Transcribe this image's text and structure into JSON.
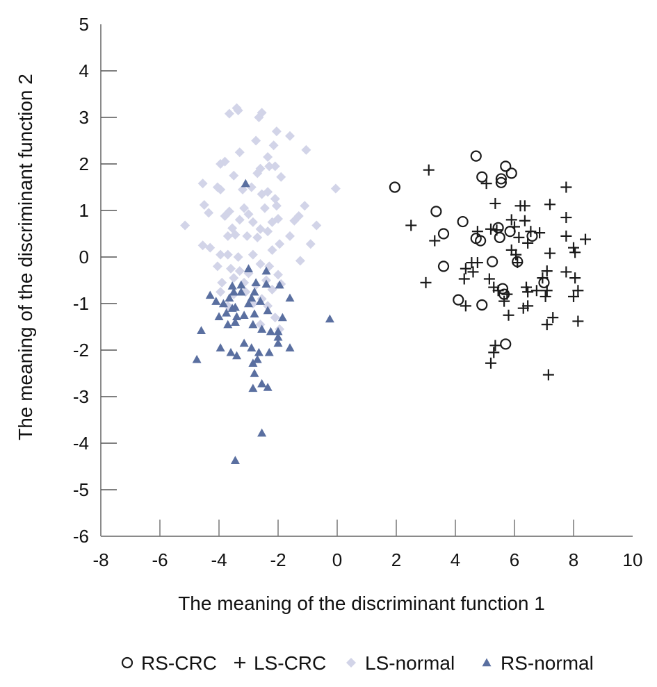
{
  "chart_data": {
    "type": "scatter",
    "title": "",
    "xlabel": "The meaning of the discriminant function 1",
    "ylabel": "The meaning of the discriminant function 2",
    "xlim": [
      -8,
      10
    ],
    "ylim": [
      -6,
      5
    ],
    "xticks": [
      -8,
      -6,
      -4,
      -2,
      0,
      2,
      4,
      6,
      8,
      10
    ],
    "yticks": [
      5,
      4,
      3,
      2,
      1,
      0,
      -1,
      -2,
      -3,
      -4,
      -5,
      -6
    ],
    "xtick_labels": [
      "-8",
      "-6",
      "-4",
      "-2",
      "0",
      "2",
      "4",
      "6",
      "8",
      "10"
    ],
    "ytick_labels": [
      "5",
      "4",
      "3",
      "2",
      "1",
      "0",
      "-1",
      "-2",
      "-3",
      "-4",
      "-5",
      "-6"
    ],
    "grid": false,
    "legend_position": "bottom",
    "series": [
      {
        "name": "RS-CRC",
        "marker": "circle-open",
        "color": "#1a1a1a",
        "points": [
          [
            4.7,
            2.17
          ],
          [
            5.7,
            1.95
          ],
          [
            4.9,
            1.72
          ],
          [
            5.9,
            1.8
          ],
          [
            5.55,
            1.68
          ],
          [
            5.55,
            1.6
          ],
          [
            1.95,
            1.5
          ],
          [
            3.35,
            0.98
          ],
          [
            4.25,
            0.76
          ],
          [
            3.6,
            0.5
          ],
          [
            4.7,
            0.4
          ],
          [
            4.85,
            0.35
          ],
          [
            5.5,
            0.42
          ],
          [
            5.85,
            0.55
          ],
          [
            6.6,
            0.45
          ],
          [
            5.45,
            0.63
          ],
          [
            5.25,
            -0.1
          ],
          [
            6.1,
            -0.1
          ],
          [
            3.6,
            -0.2
          ],
          [
            5.6,
            -0.68
          ],
          [
            5.65,
            -0.8
          ],
          [
            7.0,
            -0.55
          ],
          [
            4.1,
            -0.92
          ],
          [
            4.9,
            -1.03
          ],
          [
            5.7,
            -1.87
          ]
        ]
      },
      {
        "name": "LS-CRC",
        "marker": "plus",
        "color": "#1a1a1a",
        "points": [
          [
            3.1,
            1.87
          ],
          [
            5.05,
            1.58
          ],
          [
            7.75,
            1.5
          ],
          [
            5.35,
            1.15
          ],
          [
            6.2,
            1.1
          ],
          [
            6.35,
            1.1
          ],
          [
            7.2,
            1.13
          ],
          [
            7.75,
            0.85
          ],
          [
            5.9,
            0.8
          ],
          [
            6.35,
            0.78
          ],
          [
            2.5,
            0.68
          ],
          [
            6.0,
            0.65
          ],
          [
            6.55,
            0.55
          ],
          [
            4.75,
            0.55
          ],
          [
            5.4,
            0.58
          ],
          [
            5.2,
            0.6
          ],
          [
            6.85,
            0.52
          ],
          [
            7.75,
            0.45
          ],
          [
            8.4,
            0.38
          ],
          [
            3.3,
            0.35
          ],
          [
            6.15,
            0.42
          ],
          [
            6.45,
            0.3
          ],
          [
            5.9,
            0.15
          ],
          [
            8.0,
            0.2
          ],
          [
            8.05,
            0.1
          ],
          [
            7.2,
            0.08
          ],
          [
            6.05,
            0.05
          ],
          [
            4.55,
            -0.12
          ],
          [
            4.75,
            -0.12
          ],
          [
            6.1,
            -0.12
          ],
          [
            4.35,
            -0.25
          ],
          [
            4.6,
            -0.32
          ],
          [
            7.1,
            -0.3
          ],
          [
            7.75,
            -0.32
          ],
          [
            3.0,
            -0.55
          ],
          [
            4.3,
            -0.47
          ],
          [
            5.15,
            -0.47
          ],
          [
            6.95,
            -0.45
          ],
          [
            8.05,
            -0.45
          ],
          [
            5.3,
            -0.65
          ],
          [
            5.45,
            -0.72
          ],
          [
            6.4,
            -0.65
          ],
          [
            6.45,
            -0.75
          ],
          [
            6.75,
            -0.72
          ],
          [
            7.1,
            -0.72
          ],
          [
            8.15,
            -0.72
          ],
          [
            5.75,
            -0.8
          ],
          [
            7.05,
            -0.85
          ],
          [
            8.0,
            -0.85
          ],
          [
            5.65,
            -0.95
          ],
          [
            4.35,
            -1.05
          ],
          [
            6.3,
            -1.1
          ],
          [
            6.45,
            -1.05
          ],
          [
            5.8,
            -1.25
          ],
          [
            7.3,
            -1.3
          ],
          [
            8.15,
            -1.38
          ],
          [
            7.1,
            -1.45
          ],
          [
            5.35,
            -1.9
          ],
          [
            5.3,
            -2.05
          ],
          [
            5.2,
            -2.28
          ],
          [
            7.15,
            -2.53
          ]
        ]
      },
      {
        "name": "LS-normal",
        "marker": "diamond",
        "color": "#d2d4e8",
        "points": [
          [
            -3.4,
            3.2
          ],
          [
            -3.35,
            3.15
          ],
          [
            -3.65,
            3.08
          ],
          [
            -2.55,
            3.1
          ],
          [
            -2.65,
            3.0
          ],
          [
            -2.05,
            2.7
          ],
          [
            -1.6,
            2.6
          ],
          [
            -2.75,
            2.5
          ],
          [
            -1.05,
            2.3
          ],
          [
            -3.3,
            2.25
          ],
          [
            -2.15,
            2.4
          ],
          [
            -3.95,
            2.0
          ],
          [
            -3.8,
            2.05
          ],
          [
            -2.35,
            2.15
          ],
          [
            -2.3,
            1.95
          ],
          [
            -2.1,
            1.95
          ],
          [
            -2.6,
            1.9
          ],
          [
            -2.7,
            1.8
          ],
          [
            -1.9,
            1.72
          ],
          [
            -3.5,
            1.75
          ],
          [
            -4.05,
            1.5
          ],
          [
            -3.95,
            1.45
          ],
          [
            -3.2,
            1.45
          ],
          [
            -2.9,
            1.5
          ],
          [
            -2.55,
            1.35
          ],
          [
            -2.35,
            1.4
          ],
          [
            -2.1,
            1.25
          ],
          [
            -4.55,
            1.58
          ],
          [
            -0.05,
            1.47
          ],
          [
            -4.5,
            1.12
          ],
          [
            -4.35,
            0.95
          ],
          [
            -3.65,
            0.98
          ],
          [
            -3.15,
            1.05
          ],
          [
            -2.45,
            1.05
          ],
          [
            -2.05,
            1.1
          ],
          [
            -1.1,
            1.1
          ],
          [
            -1.3,
            0.88
          ],
          [
            -1.45,
            0.78
          ],
          [
            -5.15,
            0.68
          ],
          [
            -3.8,
            0.88
          ],
          [
            -3.55,
            0.62
          ],
          [
            -3.3,
            0.8
          ],
          [
            -3.0,
            0.92
          ],
          [
            -2.85,
            0.75
          ],
          [
            -2.6,
            0.6
          ],
          [
            -2.2,
            0.75
          ],
          [
            -2.0,
            0.82
          ],
          [
            -0.7,
            0.68
          ],
          [
            -3.7,
            0.45
          ],
          [
            -3.45,
            0.48
          ],
          [
            -3.05,
            0.45
          ],
          [
            -2.7,
            0.42
          ],
          [
            -2.35,
            0.55
          ],
          [
            -1.6,
            0.45
          ],
          [
            -0.9,
            0.28
          ],
          [
            -4.55,
            0.25
          ],
          [
            -4.3,
            0.2
          ],
          [
            -3.95,
            0.05
          ],
          [
            -3.7,
            0.05
          ],
          [
            -3.35,
            0.0
          ],
          [
            -2.85,
            0.05
          ],
          [
            -2.2,
            0.15
          ],
          [
            -1.95,
            0.28
          ],
          [
            -1.25,
            -0.08
          ],
          [
            -4.05,
            -0.2
          ],
          [
            -3.6,
            -0.25
          ],
          [
            -3.3,
            -0.3
          ],
          [
            -3.0,
            -0.35
          ],
          [
            -2.6,
            -0.15
          ],
          [
            -2.3,
            -0.2
          ],
          [
            -2.0,
            -0.38
          ],
          [
            -3.9,
            -0.55
          ],
          [
            -3.5,
            -0.45
          ],
          [
            -3.15,
            -0.55
          ],
          [
            -2.75,
            -0.6
          ],
          [
            -2.4,
            -0.5
          ],
          [
            -1.9,
            -0.58
          ],
          [
            -3.95,
            -0.75
          ],
          [
            -3.5,
            -0.8
          ],
          [
            -3.1,
            -0.75
          ],
          [
            -2.2,
            -0.7
          ],
          [
            -2.55,
            -0.9
          ],
          [
            -2.85,
            -1.0
          ],
          [
            -3.7,
            -1.05
          ],
          [
            -2.1,
            -1.3
          ],
          [
            -2.35,
            -1.05
          ],
          [
            -2.6,
            -1.45
          ],
          [
            -1.95,
            -1.55
          ]
        ]
      },
      {
        "name": "RS-normal",
        "marker": "triangle",
        "color": "#5a6fa0",
        "points": [
          [
            -3.1,
            1.58
          ],
          [
            -3.0,
            -0.25
          ],
          [
            -2.4,
            -0.3
          ],
          [
            -3.55,
            -0.62
          ],
          [
            -3.25,
            -0.6
          ],
          [
            -2.75,
            -0.55
          ],
          [
            -2.4,
            -0.58
          ],
          [
            -3.65,
            -0.88
          ],
          [
            -3.5,
            -0.75
          ],
          [
            -3.25,
            -0.75
          ],
          [
            -2.8,
            -0.75
          ],
          [
            -1.95,
            -0.6
          ],
          [
            -4.3,
            -0.82
          ],
          [
            -4.1,
            -0.95
          ],
          [
            -3.85,
            -1.0
          ],
          [
            -3.55,
            -1.1
          ],
          [
            -3.45,
            -1.08
          ],
          [
            -3.0,
            -1.0
          ],
          [
            -2.9,
            -0.88
          ],
          [
            -2.6,
            -0.95
          ],
          [
            -1.6,
            -0.88
          ],
          [
            -4.0,
            -1.28
          ],
          [
            -3.75,
            -1.2
          ],
          [
            -3.4,
            -1.28
          ],
          [
            -3.15,
            -1.25
          ],
          [
            -2.8,
            -1.22
          ],
          [
            -2.35,
            -1.15
          ],
          [
            -1.85,
            -1.3
          ],
          [
            -3.7,
            -1.45
          ],
          [
            -3.45,
            -1.4
          ],
          [
            -2.85,
            -1.45
          ],
          [
            -2.55,
            -1.55
          ],
          [
            -2.25,
            -1.6
          ],
          [
            -2.0,
            -1.6
          ],
          [
            -2.0,
            -1.72
          ],
          [
            -4.6,
            -1.58
          ],
          [
            -0.25,
            -1.33
          ],
          [
            -3.15,
            -1.85
          ],
          [
            -2.9,
            -1.95
          ],
          [
            -2.65,
            -2.05
          ],
          [
            -2.3,
            -2.05
          ],
          [
            -2.0,
            -1.85
          ],
          [
            -1.6,
            -1.95
          ],
          [
            -3.95,
            -1.95
          ],
          [
            -3.6,
            -2.05
          ],
          [
            -3.4,
            -2.12
          ],
          [
            -2.7,
            -2.2
          ],
          [
            -2.85,
            -2.28
          ],
          [
            -4.75,
            -2.2
          ],
          [
            -2.8,
            -2.5
          ],
          [
            -2.55,
            -2.72
          ],
          [
            -2.35,
            -2.8
          ],
          [
            -2.85,
            -2.82
          ],
          [
            -2.55,
            -3.78
          ],
          [
            -3.45,
            -4.37
          ]
        ]
      }
    ]
  }
}
